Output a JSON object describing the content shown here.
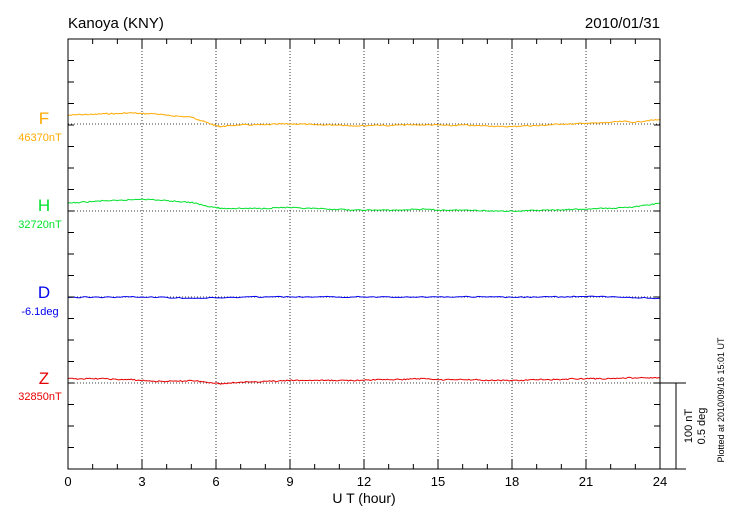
{
  "chart_data": {
    "type": "line",
    "title_left": "Kanoya (KNY)",
    "title_right": "2010/01/31",
    "xlabel": "U T (hour)",
    "xlim": [
      0,
      24
    ],
    "xticks": [
      0,
      3,
      6,
      9,
      12,
      15,
      18,
      21,
      24
    ],
    "scale_label_1": "100 nT",
    "scale_label_2": "0.5 deg",
    "footer_note": "Plotted at 2010/09/16 15:01 UT",
    "series": [
      {
        "name": "F",
        "baseline_label": "46370nT",
        "color": "#ffaa00",
        "unit": "nT",
        "baseline": 46370,
        "x": [
          0,
          0.5,
          1,
          1.5,
          2,
          2.5,
          3,
          3.5,
          4,
          4.5,
          5,
          5.3,
          5.6,
          6,
          6.2,
          6.5,
          7,
          7.5,
          8,
          8.5,
          9,
          9.5,
          10,
          10.5,
          11,
          11.5,
          12,
          12.5,
          13,
          13.5,
          14,
          14.5,
          15,
          15.5,
          16,
          16.5,
          17,
          17.5,
          18,
          18.5,
          19,
          19.5,
          20,
          20.5,
          21,
          21.5,
          22,
          22.5,
          23,
          23.5,
          24
        ],
        "y": [
          46380,
          46381,
          46381,
          46382,
          46382,
          46383,
          46382,
          46382,
          46380,
          46379,
          46378,
          46375,
          46372,
          46368,
          46367,
          46368,
          46369,
          46369,
          46369,
          46370,
          46370,
          46370,
          46369,
          46369,
          46369,
          46368,
          46368,
          46369,
          46368,
          46369,
          46369,
          46369,
          46369,
          46368,
          46369,
          46368,
          46368,
          46367,
          46367,
          46368,
          46368,
          46369,
          46370,
          46370,
          46371,
          46371,
          46372,
          46373,
          46372,
          46374,
          46375
        ]
      },
      {
        "name": "H",
        "baseline_label": "32720nT",
        "color": "#00e22b",
        "unit": "nT",
        "baseline": 32720,
        "x": [
          0,
          0.5,
          1,
          1.5,
          2,
          2.5,
          3,
          3.5,
          4,
          4.5,
          5,
          5.3,
          5.6,
          6,
          6.2,
          6.5,
          7,
          7.5,
          8,
          8.5,
          9,
          9.5,
          10,
          10.5,
          11,
          11.5,
          12,
          12.5,
          13,
          13.5,
          14,
          14.5,
          15,
          15.5,
          16,
          16.5,
          17,
          17.5,
          18,
          18.5,
          19,
          19.5,
          20,
          20.5,
          21,
          21.5,
          22,
          22.5,
          23,
          23.5,
          24
        ],
        "y": [
          32729,
          32730,
          32731,
          32732,
          32732,
          32733,
          32734,
          32733,
          32732,
          32731,
          32730,
          32728,
          32726,
          32724,
          32723,
          32723,
          32723,
          32723,
          32723,
          32724,
          32724,
          32723,
          32723,
          32722,
          32722,
          32721,
          32721,
          32721,
          32721,
          32721,
          32722,
          32722,
          32721,
          32721,
          32721,
          32721,
          32720,
          32720,
          32720,
          32720,
          32721,
          32721,
          32721,
          32722,
          32722,
          32723,
          32723,
          32724,
          32725,
          32727,
          32729
        ]
      },
      {
        "name": "D",
        "baseline_label": "-6.1deg",
        "color": "#0000ee",
        "unit": "deg",
        "baseline": -6.1,
        "x": [
          0,
          1,
          2,
          3,
          4,
          5,
          6,
          7,
          8,
          9,
          10,
          11,
          12,
          13,
          14,
          15,
          16,
          17,
          18,
          19,
          20,
          21,
          22,
          23,
          24
        ],
        "y": [
          -6.1025,
          -6.1012,
          -6.1,
          -6.1,
          -6.1025,
          -6.1062,
          -6.105,
          -6.1012,
          -6.0988,
          -6.1,
          -6.1,
          -6.1,
          -6.1,
          -6.0988,
          -6.1,
          -6.1,
          -6.0988,
          -6.1,
          -6.1012,
          -6.1012,
          -6.0988,
          -6.0975,
          -6.0988,
          -6.1038,
          -6.1075
        ]
      },
      {
        "name": "Z",
        "baseline_label": "32850nT",
        "color": "#e80000",
        "unit": "nT",
        "baseline": 32850,
        "x": [
          0,
          0.5,
          1,
          1.5,
          2,
          2.5,
          3,
          3.5,
          4,
          4.5,
          5,
          5.3,
          5.6,
          6,
          6.2,
          6.5,
          7,
          7.5,
          8,
          8.5,
          9,
          9.5,
          10,
          10.5,
          11,
          11.5,
          12,
          12.5,
          13,
          13.5,
          14,
          14.5,
          15,
          15.5,
          16,
          16.5,
          17,
          17.5,
          18,
          18.5,
          19,
          19.5,
          20,
          20.5,
          21,
          21.5,
          22,
          22.5,
          23,
          23.5,
          24
        ],
        "y": [
          32855,
          32855,
          32855,
          32855,
          32854,
          32854,
          32853,
          32852,
          32852,
          32852,
          32853,
          32852,
          32851,
          32850,
          32849,
          32850,
          32851,
          32851,
          32852,
          32852,
          32853,
          32853,
          32853,
          32853,
          32853,
          32853,
          32853,
          32854,
          32854,
          32854,
          32855,
          32855,
          32854,
          32854,
          32854,
          32854,
          32853,
          32853,
          32853,
          32853,
          32854,
          32854,
          32854,
          32855,
          32855,
          32855,
          32855,
          32856,
          32856,
          32856,
          32856
        ]
      }
    ]
  }
}
